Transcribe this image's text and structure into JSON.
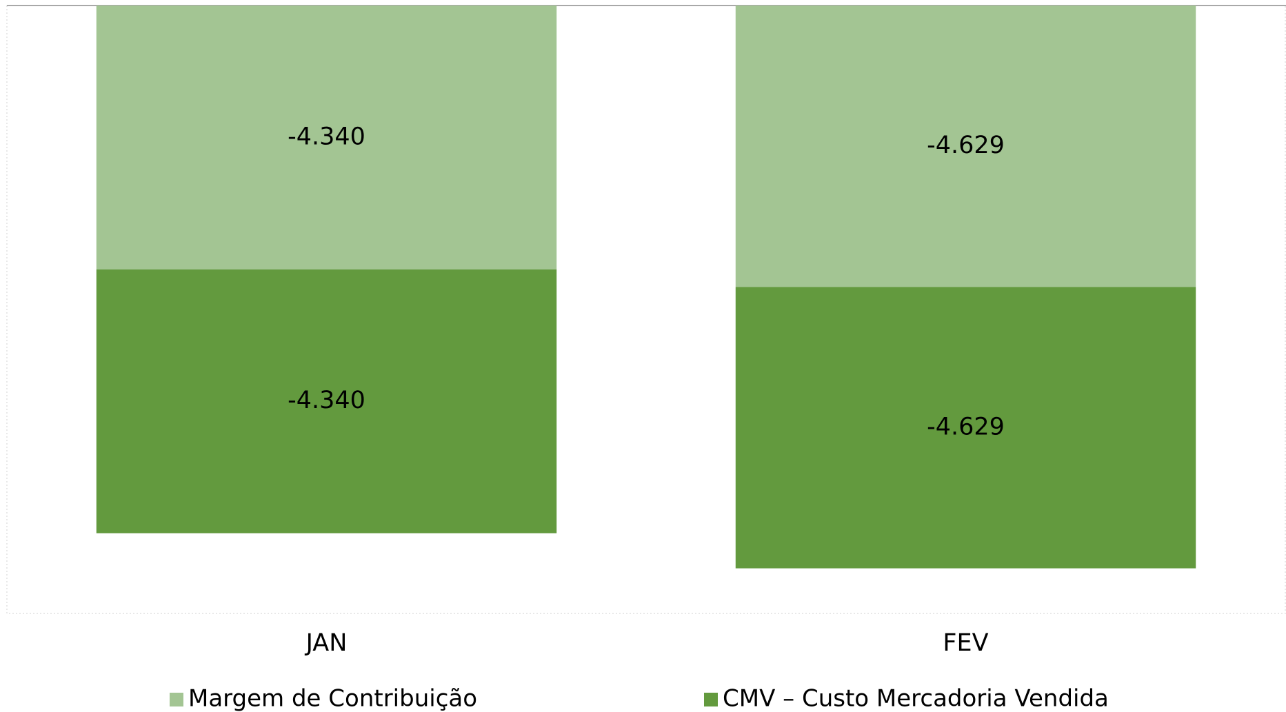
{
  "chart_data": {
    "type": "stacked_bar",
    "categories": [
      "JAN",
      "FEV"
    ],
    "series": [
      {
        "name": "Margem de Contribuição",
        "color": "#a3c593",
        "values": [
          -4340,
          -4629
        ],
        "value_labels": [
          "-4.340",
          "-4.629"
        ]
      },
      {
        "name": "CMV – Custo Mercadoria Vendida",
        "color": "#639a3e",
        "values": [
          -4340,
          -4629
        ],
        "value_labels": [
          "-4.340",
          "-4.629"
        ]
      }
    ],
    "ylim": [
      -10000,
      0
    ],
    "legend": "bottom"
  }
}
